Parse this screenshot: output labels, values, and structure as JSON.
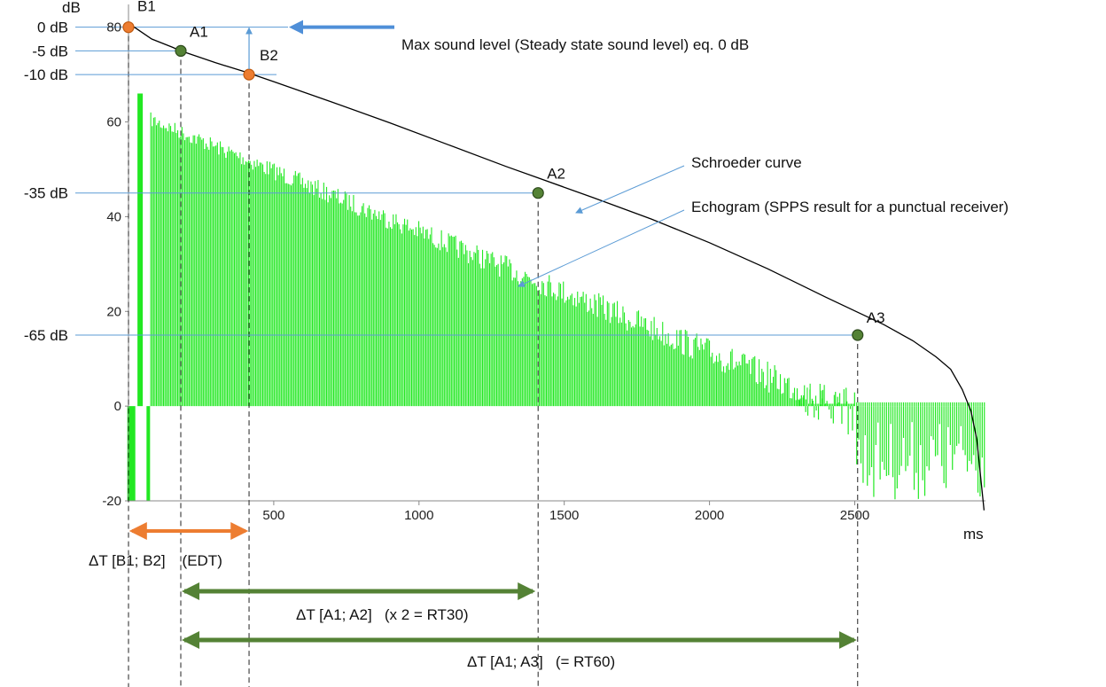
{
  "chart_data": {
    "type": "bar",
    "title": "",
    "xlabel": "ms",
    "ylabel": "dB",
    "xlim": [
      0,
      2950
    ],
    "ylim": [
      -20,
      82
    ],
    "x_ticks": [
      500,
      1000,
      1500,
      2000,
      2500
    ],
    "y_ticks": [
      -20,
      0,
      20,
      40,
      60,
      80
    ],
    "colors": {
      "echogram": "#22e822",
      "schroeder": "#000000",
      "orange_point": "#ed7d31",
      "green_point": "#548235",
      "blue_accent": "#5b9bd5",
      "edt_arrow": "#ed7d31",
      "rt_arrow": "#548235"
    },
    "schroeder_curve": {
      "name": "Schroeder curve",
      "x": [
        0,
        20,
        80,
        150,
        180,
        300,
        400,
        500,
        700,
        900,
        1100,
        1300,
        1400,
        1600,
        1800,
        2000,
        2200,
        2400,
        2500,
        2600,
        2700,
        2780,
        2830,
        2870,
        2900,
        2920,
        2945
      ],
      "y": [
        80,
        80,
        77.5,
        75.8,
        75,
        72.5,
        70.6,
        68.5,
        64.2,
        59.8,
        55.2,
        50.6,
        48.4,
        44.0,
        39.5,
        34.5,
        29.0,
        23.0,
        20.1,
        17.2,
        13.8,
        10.4,
        7.8,
        3.5,
        -1.0,
        -7.0,
        -22.0
      ]
    },
    "echogram": {
      "name": "Echogram (SPPS result for a punctual receiver)",
      "peak_ms": 40,
      "peak_db": 66,
      "start_ms": 75,
      "start_db": 62,
      "end_ms": 2500,
      "end_db": 2,
      "tail_end_ms": 2950,
      "tail_min_db": -20
    },
    "db_levels": [
      {
        "label": "0 dB",
        "value": 80
      },
      {
        "label": "-5 dB",
        "value": 75
      },
      {
        "label": "-10 dB",
        "value": 70
      },
      {
        "label": "-35 dB",
        "value": 45
      },
      {
        "label": "-65 dB",
        "value": 15
      }
    ],
    "points": [
      {
        "label": "B1",
        "x": 0,
        "y": 80,
        "type": "orange"
      },
      {
        "label": "A1",
        "x": 180,
        "y": 75,
        "type": "green"
      },
      {
        "label": "B2",
        "x": 415,
        "y": 70,
        "type": "orange"
      },
      {
        "label": "A2",
        "x": 1410,
        "y": 45,
        "type": "green"
      },
      {
        "label": "A3",
        "x": 2510,
        "y": 15,
        "type": "green"
      }
    ],
    "annotations": {
      "max_level": "Max sound level (Steady state sound level) eq. 0 dB",
      "schroeder": "Schroeder curve",
      "echogram": "Echogram (SPPS result for a punctual receiver)"
    },
    "intervals": [
      {
        "label": "ΔT [B1; B2]    (EDT)",
        "from": "B1",
        "to": "B2"
      },
      {
        "label": "ΔT [A1; A2]   (x 2 = RT30)",
        "from": "A1",
        "to": "A2"
      },
      {
        "label": "ΔT [A1; A3]   (= RT60)",
        "from": "A1",
        "to": "A3"
      }
    ]
  }
}
